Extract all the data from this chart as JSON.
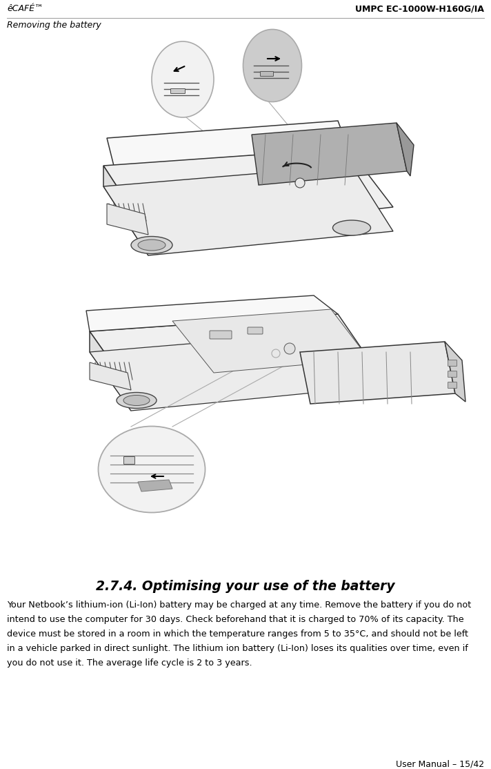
{
  "header_left": "êCAFÉ™",
  "header_right": "UMPC EC-1000W-H160G/IA",
  "section_label": "Removing the battery",
  "section_title": "2.7.4. Optimising your use of the battery",
  "body_lines": [
    "Your Netbook’s lithium-ion (Li-Ion) battery may be charged at any time. Remove the battery if you do not",
    "intend to use the computer for 30 days. Check beforehand that it is charged to 70% of its capacity. The",
    "device must be stored in a room in which the temperature ranges from 5 to 35°C, and should not be left",
    "in a vehicle parked in direct sunlight. The lithium ion battery (Li-Ion) loses its qualities over time, even if",
    "you do not use it. The average life cycle is 2 to 3 years."
  ],
  "footer_right": "User Manual – 15/42",
  "bg_color": "#ffffff",
  "text_color": "#000000",
  "gray_line": "#999999",
  "fig_width": 7.12,
  "fig_height": 11.14,
  "dpi": 100
}
